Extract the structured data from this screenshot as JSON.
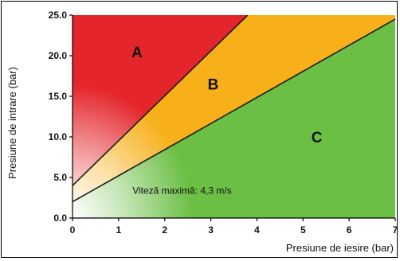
{
  "chart_data": {
    "type": "area",
    "title": "",
    "xlabel": "Presiune de iesire (bar)",
    "ylabel": "Presiune de intrare (bar)",
    "xlim": [
      0,
      7
    ],
    "ylim": [
      0,
      25
    ],
    "x_ticks": [
      "0",
      "1",
      "2",
      "3",
      "4",
      "5",
      "6",
      "7"
    ],
    "y_ticks": [
      "0.0",
      "5.0",
      "10.0",
      "15.0",
      "20.0",
      "25.0"
    ],
    "boundaries": [
      {
        "name": "A/B",
        "points": [
          [
            0,
            4.0
          ],
          [
            3.8,
            25.0
          ]
        ]
      },
      {
        "name": "B/C",
        "points": [
          [
            0,
            2.0
          ],
          [
            7.0,
            24.5
          ]
        ]
      }
    ],
    "zones": [
      {
        "label": "A",
        "color": "#e4252b",
        "label_at": [
          1.4,
          20.5
        ]
      },
      {
        "label": "B",
        "color": "#f7b01a",
        "label_at": [
          3.05,
          16.5
        ]
      },
      {
        "label": "C",
        "color": "#6cbf45",
        "label_at": [
          5.3,
          10.0
        ]
      }
    ],
    "annotation": "Viteză maximă: 4,3 m/s",
    "fade_color": "#ffffff"
  }
}
